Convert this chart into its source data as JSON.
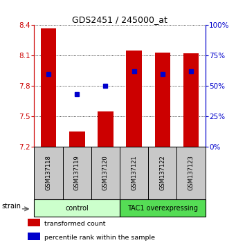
{
  "title": "GDS2451 / 245000_at",
  "samples": [
    "GSM137118",
    "GSM137119",
    "GSM137120",
    "GSM137121",
    "GSM137122",
    "GSM137123"
  ],
  "transformed_counts": [
    8.37,
    7.35,
    7.55,
    8.15,
    8.13,
    8.12
  ],
  "percentile_ranks": [
    60,
    43,
    50,
    62,
    60,
    62
  ],
  "ylim_left": [
    7.2,
    8.4
  ],
  "ylim_right": [
    0,
    100
  ],
  "yticks_left": [
    7.2,
    7.5,
    7.8,
    8.1,
    8.4
  ],
  "yticks_right": [
    0,
    25,
    50,
    75,
    100
  ],
  "bar_color": "#cc0000",
  "dot_color": "#0000cc",
  "bar_bottom": 7.2,
  "groups": [
    {
      "label": "control",
      "indices": [
        0,
        1,
        2
      ],
      "color": "#ccffcc"
    },
    {
      "label": "TAC1 overexpressing",
      "indices": [
        3,
        4,
        5
      ],
      "color": "#55dd55"
    }
  ],
  "strain_label": "strain",
  "legend_items": [
    {
      "color": "#cc0000",
      "label": "transformed count"
    },
    {
      "color": "#0000cc",
      "label": "percentile rank within the sample"
    }
  ],
  "grid_color": "#000000",
  "axis_color_left": "#cc0000",
  "axis_color_right": "#0000cc",
  "bar_width": 0.55,
  "sample_box_color": "#c8c8c8",
  "fig_width": 3.41,
  "fig_height": 3.54,
  "dpi": 100
}
